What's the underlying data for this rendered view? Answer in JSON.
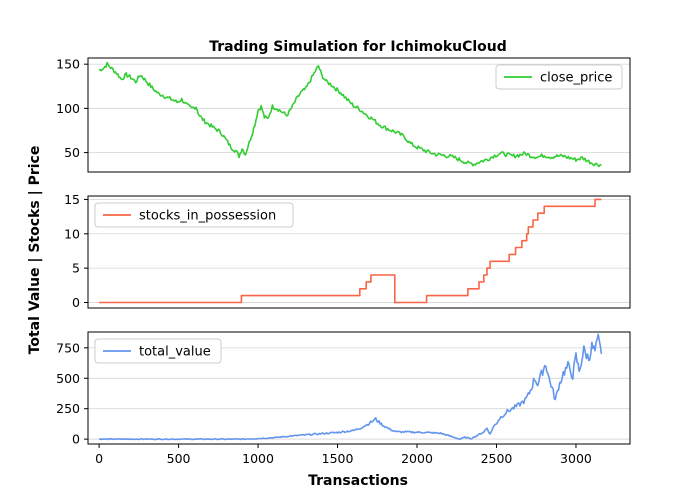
{
  "chart_data": {
    "type": "line",
    "title": "Trading Simulation for IchimokuCloud",
    "xlabel": "Transactions",
    "ylabel": "Total Value | Stocks | Price",
    "xlim": [
      -70,
      3340
    ],
    "xticks": [
      0,
      500,
      1000,
      1500,
      2000,
      2500,
      3000
    ],
    "grid": "horizontal",
    "panels": [
      {
        "series_name": "close_price",
        "color": "#32cd32",
        "legend": "top-right",
        "ylim": [
          28,
          157
        ],
        "yticks": [
          50,
          100,
          150
        ],
        "smoothing": "jagged",
        "points": [
          [
            0,
            143
          ],
          [
            30,
            146
          ],
          [
            50,
            150
          ],
          [
            80,
            145
          ],
          [
            110,
            140
          ],
          [
            140,
            133
          ],
          [
            170,
            138
          ],
          [
            200,
            135
          ],
          [
            230,
            130
          ],
          [
            260,
            138
          ],
          [
            280,
            134
          ],
          [
            310,
            128
          ],
          [
            340,
            122
          ],
          [
            370,
            117
          ],
          [
            400,
            115
          ],
          [
            430,
            112
          ],
          [
            460,
            110
          ],
          [
            490,
            107
          ],
          [
            520,
            110
          ],
          [
            550,
            104
          ],
          [
            580,
            100
          ],
          [
            610,
            102
          ],
          [
            630,
            92
          ],
          [
            660,
            86
          ],
          [
            690,
            82
          ],
          [
            720,
            78
          ],
          [
            750,
            75
          ],
          [
            770,
            72
          ],
          [
            800,
            64
          ],
          [
            830,
            56
          ],
          [
            860,
            52
          ],
          [
            880,
            46
          ],
          [
            900,
            55
          ],
          [
            920,
            48
          ],
          [
            960,
            70
          ],
          [
            980,
            82
          ],
          [
            1000,
            98
          ],
          [
            1020,
            102
          ],
          [
            1040,
            90
          ],
          [
            1060,
            88
          ],
          [
            1090,
            102
          ],
          [
            1120,
            100
          ],
          [
            1150,
            96
          ],
          [
            1180,
            92
          ],
          [
            1210,
            100
          ],
          [
            1240,
            110
          ],
          [
            1270,
            118
          ],
          [
            1300,
            122
          ],
          [
            1330,
            132
          ],
          [
            1360,
            142
          ],
          [
            1380,
            148
          ],
          [
            1400,
            138
          ],
          [
            1430,
            130
          ],
          [
            1460,
            127
          ],
          [
            1490,
            122
          ],
          [
            1520,
            118
          ],
          [
            1560,
            110
          ],
          [
            1600,
            103
          ],
          [
            1640,
            99
          ],
          [
            1680,
            93
          ],
          [
            1720,
            88
          ],
          [
            1760,
            82
          ],
          [
            1800,
            78
          ],
          [
            1840,
            75
          ],
          [
            1880,
            72
          ],
          [
            1920,
            68
          ],
          [
            1960,
            60
          ],
          [
            2000,
            56
          ],
          [
            2040,
            53
          ],
          [
            2080,
            50
          ],
          [
            2120,
            48
          ],
          [
            2160,
            47
          ],
          [
            2200,
            46
          ],
          [
            2240,
            44
          ],
          [
            2280,
            41
          ],
          [
            2320,
            38
          ],
          [
            2360,
            37
          ],
          [
            2400,
            40
          ],
          [
            2440,
            42
          ],
          [
            2480,
            46
          ],
          [
            2520,
            49
          ],
          [
            2560,
            48
          ],
          [
            2600,
            46
          ],
          [
            2640,
            47
          ],
          [
            2680,
            49
          ],
          [
            2720,
            46
          ],
          [
            2760,
            45
          ],
          [
            2800,
            47
          ],
          [
            2840,
            45
          ],
          [
            2880,
            46
          ],
          [
            2920,
            46
          ],
          [
            2960,
            44
          ],
          [
            3000,
            42
          ],
          [
            3040,
            44
          ],
          [
            3080,
            40
          ],
          [
            3120,
            37
          ],
          [
            3160,
            36
          ]
        ]
      },
      {
        "series_name": "stocks_in_possession",
        "color": "#fa6447",
        "legend": "top-left",
        "ylim": [
          -0.8,
          15.5
        ],
        "yticks": [
          0,
          5,
          10,
          15
        ],
        "smoothing": "none",
        "points": [
          [
            0,
            0
          ],
          [
            895,
            0
          ],
          [
            895,
            1
          ],
          [
            1640,
            1
          ],
          [
            1640,
            2
          ],
          [
            1680,
            2
          ],
          [
            1680,
            3
          ],
          [
            1710,
            3
          ],
          [
            1710,
            4
          ],
          [
            1860,
            4
          ],
          [
            1860,
            0
          ],
          [
            2060,
            0
          ],
          [
            2060,
            1
          ],
          [
            2320,
            1
          ],
          [
            2320,
            2
          ],
          [
            2390,
            2
          ],
          [
            2390,
            3
          ],
          [
            2420,
            3
          ],
          [
            2420,
            4
          ],
          [
            2440,
            4
          ],
          [
            2440,
            5
          ],
          [
            2460,
            5
          ],
          [
            2460,
            6
          ],
          [
            2580,
            6
          ],
          [
            2580,
            7
          ],
          [
            2620,
            7
          ],
          [
            2620,
            8
          ],
          [
            2660,
            8
          ],
          [
            2660,
            9
          ],
          [
            2690,
            9
          ],
          [
            2690,
            10
          ],
          [
            2700,
            10
          ],
          [
            2700,
            11
          ],
          [
            2730,
            11
          ],
          [
            2730,
            12
          ],
          [
            2760,
            12
          ],
          [
            2760,
            13
          ],
          [
            2800,
            13
          ],
          [
            2800,
            14
          ],
          [
            3120,
            14
          ],
          [
            3120,
            15
          ],
          [
            3160,
            15
          ]
        ]
      },
      {
        "series_name": "total_value",
        "color": "#6495ed",
        "legend": "top-left",
        "ylim": [
          -40,
          880
        ],
        "yticks": [
          0,
          250,
          500,
          750
        ],
        "smoothing": "jagged",
        "points": [
          [
            0,
            0
          ],
          [
            900,
            0
          ],
          [
            1000,
            5
          ],
          [
            1100,
            12
          ],
          [
            1200,
            25
          ],
          [
            1300,
            35
          ],
          [
            1400,
            45
          ],
          [
            1500,
            55
          ],
          [
            1600,
            70
          ],
          [
            1650,
            95
          ],
          [
            1700,
            130
          ],
          [
            1740,
            165
          ],
          [
            1760,
            140
          ],
          [
            1790,
            110
          ],
          [
            1830,
            80
          ],
          [
            1870,
            60
          ],
          [
            1950,
            58
          ],
          [
            2050,
            55
          ],
          [
            2150,
            48
          ],
          [
            2220,
            20
          ],
          [
            2270,
            0
          ],
          [
            2300,
            15
          ],
          [
            2340,
            5
          ],
          [
            2380,
            30
          ],
          [
            2420,
            60
          ],
          [
            2440,
            90
          ],
          [
            2460,
            40
          ],
          [
            2480,
            100
          ],
          [
            2500,
            130
          ],
          [
            2520,
            170
          ],
          [
            2560,
            220
          ],
          [
            2600,
            250
          ],
          [
            2640,
            280
          ],
          [
            2680,
            320
          ],
          [
            2700,
            360
          ],
          [
            2720,
            420
          ],
          [
            2740,
            500
          ],
          [
            2760,
            450
          ],
          [
            2790,
            560
          ],
          [
            2810,
            620
          ],
          [
            2830,
            500
          ],
          [
            2850,
            420
          ],
          [
            2870,
            320
          ],
          [
            2890,
            430
          ],
          [
            2920,
            540
          ],
          [
            2950,
            600
          ],
          [
            2980,
            520
          ],
          [
            3000,
            680
          ],
          [
            3020,
            560
          ],
          [
            3050,
            730
          ],
          [
            3080,
            660
          ],
          [
            3100,
            760
          ],
          [
            3120,
            720
          ],
          [
            3140,
            820
          ],
          [
            3160,
            700
          ]
        ]
      }
    ]
  }
}
